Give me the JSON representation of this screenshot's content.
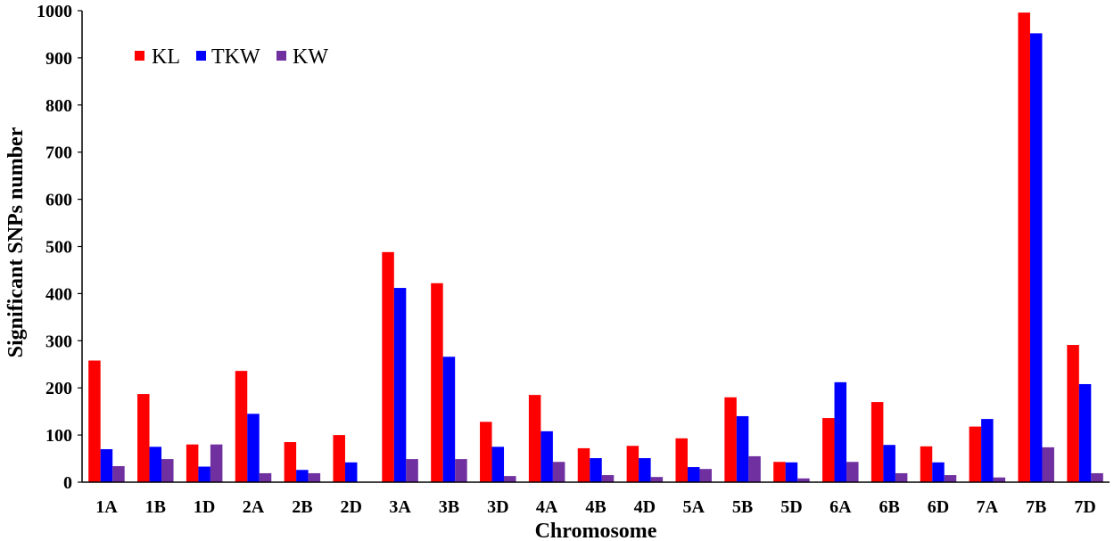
{
  "chart_data": {
    "type": "bar",
    "xlabel": "Chromosome",
    "ylabel": "Significant SNPs number",
    "ylim": [
      0,
      1000
    ],
    "yticks": [
      0,
      100,
      200,
      300,
      400,
      500,
      600,
      700,
      800,
      900,
      1000
    ],
    "grid": false,
    "legend": "top-left",
    "categories": [
      "1A",
      "1B",
      "1D",
      "2A",
      "2B",
      "2D",
      "3A",
      "3B",
      "3D",
      "4A",
      "4B",
      "4D",
      "5A",
      "5B",
      "5D",
      "6A",
      "6B",
      "6D",
      "7A",
      "7B",
      "7D"
    ],
    "series": [
      {
        "name": "KL",
        "color": "#FF0000",
        "values": [
          258,
          187,
          80,
          236,
          85,
          100,
          488,
          422,
          128,
          185,
          72,
          77,
          93,
          180,
          43,
          136,
          170,
          76,
          118,
          996,
          291
        ]
      },
      {
        "name": "TKW",
        "color": "#0000FF",
        "values": [
          70,
          75,
          33,
          145,
          26,
          42,
          412,
          266,
          75,
          108,
          51,
          51,
          32,
          140,
          42,
          212,
          79,
          42,
          134,
          952,
          208
        ]
      },
      {
        "name": "KW",
        "color": "#7030A0",
        "values": [
          34,
          49,
          80,
          19,
          19,
          0,
          49,
          49,
          13,
          43,
          15,
          11,
          28,
          55,
          8,
          43,
          19,
          15,
          10,
          74,
          19
        ]
      }
    ]
  }
}
